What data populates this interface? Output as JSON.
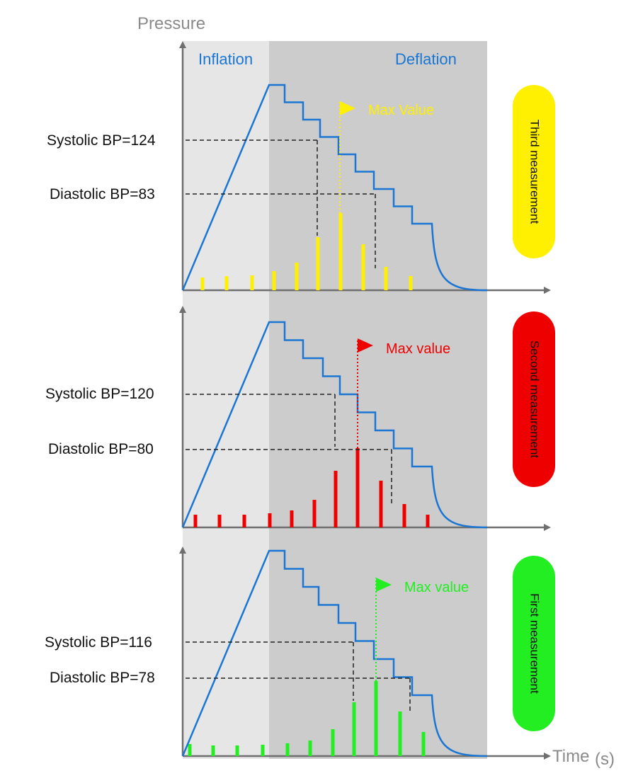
{
  "axes": {
    "y_label": "Pressure",
    "x_label": "Time",
    "x_unit": "(s)"
  },
  "phases": {
    "inflation_label": "Inflation",
    "deflation_label": "Deflation"
  },
  "colors": {
    "inflation_bg": "#e6e6e6",
    "deflation_bg": "#cccccc",
    "curve": "#1a76d2",
    "axis": "#6f6f6f",
    "guide": "#222222"
  },
  "measurements": [
    {
      "name": "third",
      "pill_label": "Third measurement",
      "color": "#ffef00",
      "systolic_label": "Systolic BP=124",
      "diastolic_label": "Diastolic BP=83",
      "max_label": "Max Value",
      "oscillation_peaks": [
        18,
        20,
        21,
        27,
        39,
        75,
        109,
        65,
        33,
        20
      ]
    },
    {
      "name": "second",
      "pill_label": "Second measurement",
      "color": "#ee0000",
      "systolic_label": "Systolic BP=120",
      "diastolic_label": "Diastolic BP=80",
      "max_label": "Max value",
      "oscillation_peaks": [
        18,
        18,
        18,
        20,
        24,
        39,
        80,
        112,
        66,
        33,
        18
      ]
    },
    {
      "name": "first",
      "pill_label": "First measurement",
      "color": "#22ee22",
      "systolic_label": "Systolic BP=116",
      "diastolic_label": "Diastolic BP=78",
      "max_label": "Max value",
      "oscillation_peaks": [
        17,
        15,
        15,
        16,
        18,
        22,
        38,
        76,
        106,
        63,
        34
      ]
    }
  ]
}
